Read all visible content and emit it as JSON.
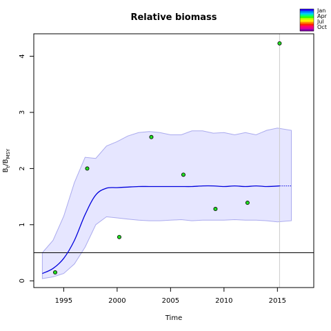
{
  "chart_data": {
    "type": "line",
    "title": "Relative biomass",
    "xlabel": "Time",
    "ylabel_main": "B",
    "ylabel_sub1": "t",
    "ylabel_sep": "/B",
    "ylabel_sub2": "MSY",
    "xlim": [
      1992.2,
      2018.4
    ],
    "ylim": [
      -0.12,
      4.4
    ],
    "xticks": [
      1995,
      2000,
      2005,
      2010,
      2015
    ],
    "yticks": [
      0,
      1,
      2,
      3,
      4
    ],
    "reference_line_y": 0.5,
    "vertical_line_x": 2015.2,
    "estimate": {
      "x": [
        1993,
        1994,
        1995,
        1996,
        1997,
        1998,
        1999,
        2000,
        2001,
        2002,
        2003,
        2004,
        2005,
        2006,
        2007,
        2008,
        2009,
        2010,
        2011,
        2012,
        2013,
        2014,
        2015.2
      ],
      "y": [
        0.13,
        0.22,
        0.4,
        0.72,
        1.18,
        1.53,
        1.65,
        1.66,
        1.67,
        1.68,
        1.68,
        1.68,
        1.68,
        1.68,
        1.68,
        1.69,
        1.69,
        1.68,
        1.69,
        1.68,
        1.69,
        1.68,
        1.69
      ]
    },
    "forecast": {
      "x": [
        2015.2,
        2016.3
      ],
      "y": [
        1.69,
        1.69
      ]
    },
    "ci": {
      "x": [
        1993,
        1994,
        1995,
        1996,
        1997,
        1998,
        1999,
        2000,
        2001,
        2002,
        2003,
        2004,
        2005,
        2006,
        2007,
        2008,
        2009,
        2010,
        2011,
        2012,
        2013,
        2014,
        2015,
        2016.3
      ],
      "upper": [
        0.5,
        0.72,
        1.15,
        1.75,
        2.2,
        2.18,
        2.4,
        2.48,
        2.58,
        2.64,
        2.66,
        2.64,
        2.6,
        2.6,
        2.67,
        2.67,
        2.63,
        2.64,
        2.6,
        2.64,
        2.6,
        2.68,
        2.72,
        2.68
      ],
      "lower": [
        0.04,
        0.07,
        0.13,
        0.3,
        0.6,
        1.0,
        1.14,
        1.12,
        1.1,
        1.08,
        1.07,
        1.07,
        1.08,
        1.09,
        1.07,
        1.08,
        1.08,
        1.08,
        1.09,
        1.08,
        1.08,
        1.07,
        1.05,
        1.07
      ]
    },
    "observations": {
      "x": [
        1994.2,
        1997.2,
        2000.2,
        2003.2,
        2006.2,
        2009.2,
        2012.2,
        2015.2
      ],
      "y": [
        0.15,
        2.0,
        0.78,
        2.56,
        1.89,
        1.28,
        1.39,
        4.23
      ]
    },
    "legend": {
      "labels": [
        "Jan",
        "Apr",
        "Jul",
        "Oct"
      ],
      "colors": [
        "#2200ff",
        "#0077ff",
        "#00c8ff",
        "#00ff88",
        "#33ff00",
        "#ccff00",
        "#ffee00",
        "#ff8800",
        "#ff2200",
        "#ff0066",
        "#dd0099",
        "#8800aa"
      ]
    },
    "colors": {
      "estimate": "#0000dd",
      "ci_fill": "#e6e6ff",
      "ci_stroke": "#aaaaee",
      "point_fill": "#22dd22",
      "vline": "#cccccc"
    }
  }
}
